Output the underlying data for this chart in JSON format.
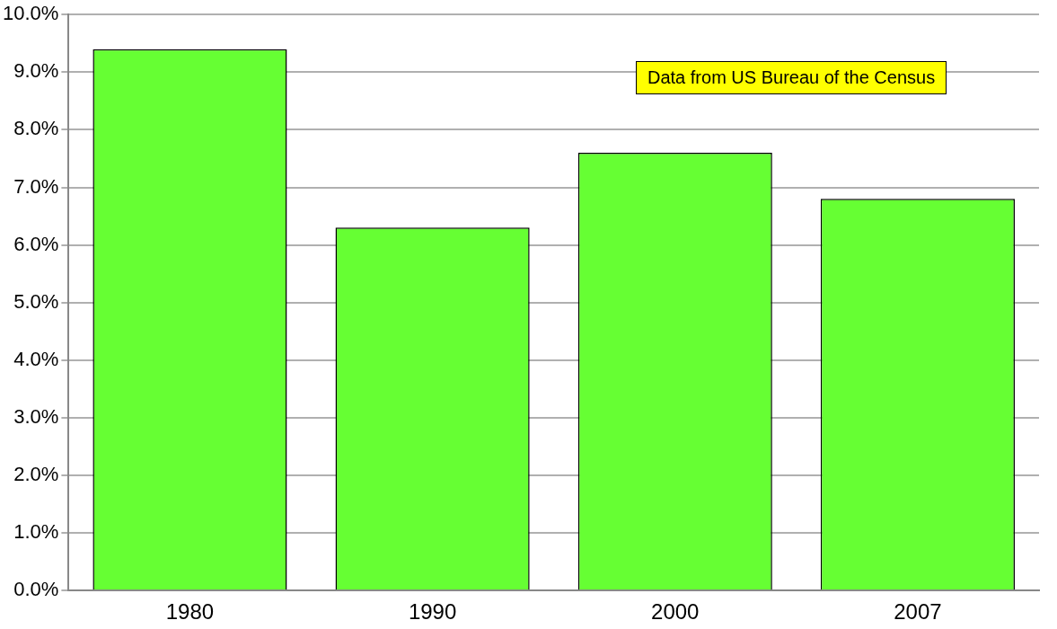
{
  "chart_data": {
    "type": "bar",
    "categories": [
      "1980",
      "1990",
      "2000",
      "2007"
    ],
    "values": [
      9.4,
      6.3,
      7.6,
      6.8
    ],
    "color": "#66ff33",
    "ylim": [
      0,
      10
    ],
    "yticks": [
      {
        "value": 0,
        "label": "0.0%"
      },
      {
        "value": 1,
        "label": "1.0%"
      },
      {
        "value": 2,
        "label": "2.0%"
      },
      {
        "value": 3,
        "label": "3.0%"
      },
      {
        "value": 4,
        "label": "4.0%"
      },
      {
        "value": 5,
        "label": "5.0%"
      },
      {
        "value": 6,
        "label": "6.0%"
      },
      {
        "value": 7,
        "label": "7.0%"
      },
      {
        "value": 8,
        "label": "8.0%"
      },
      {
        "value": 9,
        "label": "9.0%"
      },
      {
        "value": 10,
        "label": "10.0%"
      }
    ],
    "grid": "y",
    "legend": false,
    "annotations": [
      "Data from US Bureau of the Census"
    ]
  }
}
